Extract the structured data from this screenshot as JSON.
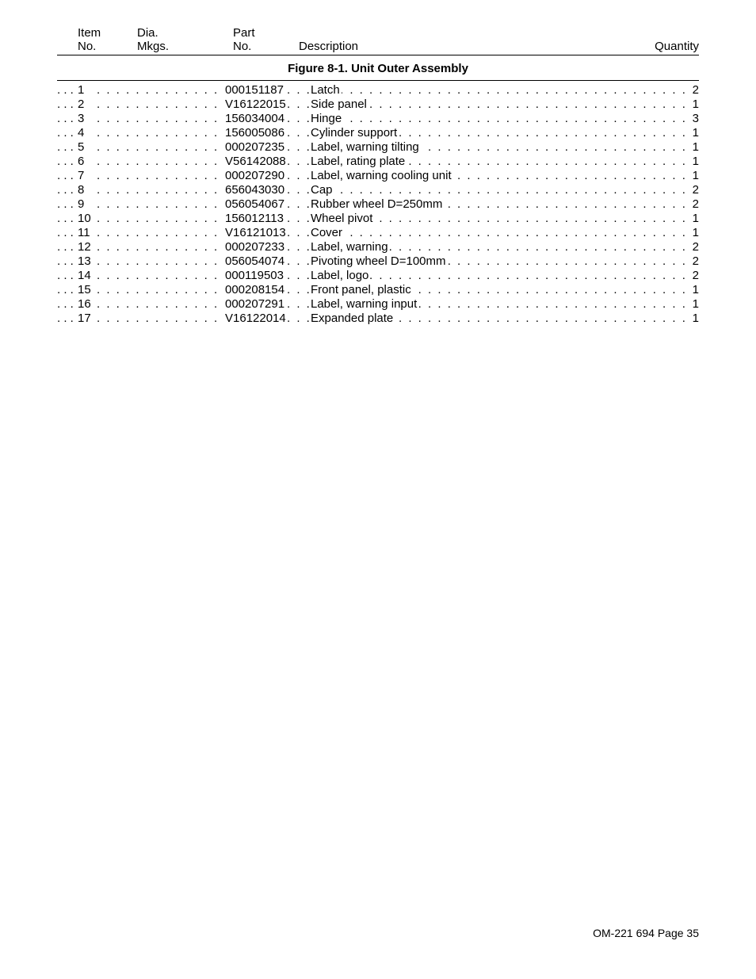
{
  "header": {
    "col1_line1": "Item",
    "col1_line2": "No.",
    "col2_line1": "Dia.",
    "col2_line2": "Mkgs.",
    "col3_line1": "Part",
    "col3_line2": "No.",
    "col4": "Description",
    "col5": "Quantity"
  },
  "figure_title": "Figure 8-1. Unit Outer Assembly",
  "rows": [
    {
      "item": "1",
      "part": "000151187",
      "desc": "Latch",
      "qty": "2"
    },
    {
      "item": "2",
      "part": "V16122015",
      "desc": "Side panel",
      "qty": "1"
    },
    {
      "item": "3",
      "part": "156034004",
      "desc": "Hinge",
      "qty": "3"
    },
    {
      "item": "4",
      "part": "156005086",
      "desc": "Cylinder support",
      "qty": "1"
    },
    {
      "item": "5",
      "part": "000207235",
      "desc": "Label, warning tilting",
      "qty": "1"
    },
    {
      "item": "6",
      "part": "V56142088",
      "desc": "Label, rating plate",
      "qty": "1"
    },
    {
      "item": "7",
      "part": "000207290",
      "desc": "Label, warning cooling unit",
      "qty": "1"
    },
    {
      "item": "8",
      "part": "656043030",
      "desc": "Cap",
      "qty": "2"
    },
    {
      "item": "9",
      "part": "056054067",
      "desc": "Rubber wheel D=250mm",
      "qty": "2"
    },
    {
      "item": "10",
      "part": "156012113",
      "desc": "Wheel pivot",
      "qty": "1"
    },
    {
      "item": "11",
      "part": "V16121013",
      "desc": "Cover",
      "qty": "1"
    },
    {
      "item": "12",
      "part": "000207233",
      "desc": "Label, warning",
      "qty": "2"
    },
    {
      "item": "13",
      "part": "056054074",
      "desc": "Pivoting wheel D=100mm",
      "qty": "2"
    },
    {
      "item": "14",
      "part": "000119503",
      "desc": "Label, logo",
      "qty": "2"
    },
    {
      "item": "15",
      "part": "000208154",
      "desc": "Front panel, plastic",
      "qty": "1"
    },
    {
      "item": "16",
      "part": "000207291",
      "desc": "Label, warning input",
      "qty": "1"
    },
    {
      "item": "17",
      "part": "V16122014",
      "desc": "Expanded plate",
      "qty": "1"
    }
  ],
  "footer": "OM-221 694 Page 35",
  "style": {
    "lead_dots": ". . .",
    "mid_dots": ". . .",
    "long_dots": ". . . . . . . . . . . . . . . . . . . . . . . . . . . . . . . . . . . . . . . . . . . . . . . . . . . . . . . . . . . . . . . . . . . . . . . . . . . . . . . . . . . . . . . . . . . . . . . . . . . . . . . . . . . . . . . . . . . . . . . . . . . . . . . . . . . . . . . . . . . . . . . . . . . . . . . . . . . . . . . . . . . . . . . . . . . . . . . .",
    "d1_dots": ". . . . . . . . . . . . . . . . . . . . . . . . . . . . . . . . . . . . . . . . . . . . . . . . . . . . . . . . . . . . . . . . . . . . . . . . . . . . . . . . . . . ."
  }
}
